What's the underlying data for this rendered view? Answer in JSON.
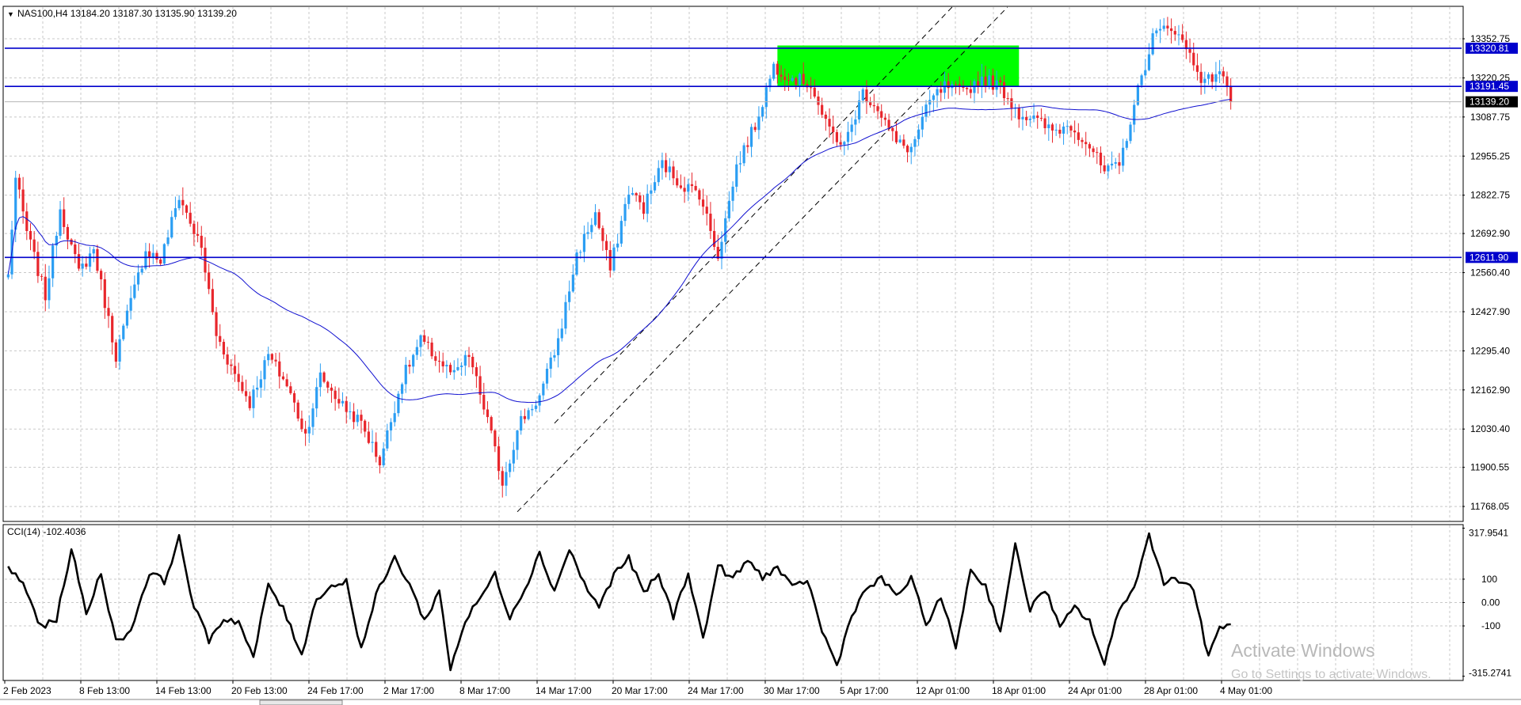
{
  "colors": {
    "bull": "#2b9ef3",
    "bear": "#e8262c",
    "level_line": "#0000cc",
    "ma_line": "#1010d0",
    "zone": "#00ff00",
    "cci_line": "#000000",
    "grid": "#c8c8c8",
    "background": "#ffffff"
  },
  "chart_data": [
    {
      "type": "candlestick",
      "title": "NAS100,H4",
      "ohlc_header": "13184.20 13187.30 13135.90 13139.20",
      "symbol_toggle_icon": "triangle-down-icon",
      "ylim": [
        11720,
        13460
      ],
      "y_ticks": [
        "13352.75",
        "13220.25",
        "13087.75",
        "12955.25",
        "12822.75",
        "12692.90",
        "12560.40",
        "12427.90",
        "12295.40",
        "12162.90",
        "12030.40",
        "11900.55",
        "11768.05"
      ],
      "x_ticks": [
        "2 Feb 2023",
        "8 Feb 13:00",
        "14 Feb 13:00",
        "20 Feb 13:00",
        "24 Feb 17:00",
        "2 Mar 17:00",
        "8 Mar 17:00",
        "14 Mar 17:00",
        "20 Mar 17:00",
        "24 Mar 17:00",
        "30 Mar 17:00",
        "5 Apr 17:00",
        "12 Apr 01:00",
        "18 Apr 01:00",
        "24 Apr 01:00",
        "28 Apr 01:00",
        "4 May 01:00"
      ],
      "bar_count": 330,
      "close_anchors": [
        [
          0,
          12550
        ],
        [
          2,
          12880
        ],
        [
          5,
          12700
        ],
        [
          10,
          12480
        ],
        [
          14,
          12780
        ],
        [
          19,
          12560
        ],
        [
          23,
          12640
        ],
        [
          29,
          12280
        ],
        [
          37,
          12640
        ],
        [
          41,
          12600
        ],
        [
          46,
          12820
        ],
        [
          52,
          12640
        ],
        [
          56,
          12350
        ],
        [
          60,
          12240
        ],
        [
          65,
          12120
        ],
        [
          70,
          12280
        ],
        [
          75,
          12180
        ],
        [
          80,
          12010
        ],
        [
          84,
          12210
        ],
        [
          90,
          12110
        ],
        [
          95,
          12050
        ],
        [
          100,
          11920
        ],
        [
          106,
          12200
        ],
        [
          111,
          12330
        ],
        [
          116,
          12260
        ],
        [
          120,
          12210
        ],
        [
          124,
          12280
        ],
        [
          129,
          12060
        ],
        [
          133,
          11850
        ],
        [
          138,
          12060
        ],
        [
          143,
          12140
        ],
        [
          148,
          12330
        ],
        [
          153,
          12620
        ],
        [
          158,
          12760
        ],
        [
          162,
          12570
        ],
        [
          167,
          12840
        ],
        [
          171,
          12780
        ],
        [
          176,
          12930
        ],
        [
          181,
          12860
        ],
        [
          186,
          12830
        ],
        [
          191,
          12620
        ],
        [
          196,
          12920
        ],
        [
          201,
          13060
        ],
        [
          206,
          13260
        ],
        [
          211,
          13220
        ],
        [
          216,
          13200
        ],
        [
          220,
          13060
        ],
        [
          225,
          12990
        ],
        [
          230,
          13170
        ],
        [
          234,
          13120
        ],
        [
          239,
          13000
        ],
        [
          243,
          12980
        ],
        [
          248,
          13140
        ],
        [
          252,
          13190
        ],
        [
          257,
          13170
        ],
        [
          262,
          13220
        ],
        [
          267,
          13190
        ],
        [
          272,
          13100
        ],
        [
          276,
          13080
        ],
        [
          281,
          13040
        ],
        [
          286,
          13060
        ],
        [
          291,
          12990
        ],
        [
          295,
          12900
        ],
        [
          299,
          12920
        ],
        [
          303,
          13130
        ],
        [
          308,
          13360
        ],
        [
          313,
          13400
        ],
        [
          318,
          13300
        ],
        [
          322,
          13200
        ],
        [
          326,
          13250
        ],
        [
          329,
          13139.2
        ]
      ],
      "ma_period_bars": 50,
      "levels": [
        {
          "price": 13320.81,
          "label": "13320.81"
        },
        {
          "price": 13191.45,
          "label": "13191.45"
        },
        {
          "price": 12611.9,
          "label": "12611.90"
        }
      ],
      "current_price": {
        "price": 13139.2,
        "label": "13139.20"
      },
      "zone": {
        "bar_from": 207,
        "bar_to": 272,
        "price_from": 13191.45,
        "price_to": 13330
      },
      "trendlines": [
        {
          "bar1": 137,
          "price1": 11750,
          "bar2": 272,
          "price2": 13500
        },
        {
          "bar1": 147,
          "price1": 12050,
          "bar2": 254,
          "price2": 13460
        }
      ]
    },
    {
      "type": "line",
      "title": "CCI(14) -102.4036",
      "ylim": [
        -330,
        330
      ],
      "y_ticks": [
        {
          "label": "317.9541",
          "value": 317.9541
        },
        {
          "label": "100",
          "value": 100
        },
        {
          "label": "0.00",
          "value": 0
        },
        {
          "label": "-100",
          "value": -100
        },
        {
          "label": "-315.2741",
          "value": -315.2741
        }
      ],
      "cci_anchors": [
        [
          0,
          150
        ],
        [
          4,
          80
        ],
        [
          9,
          -110
        ],
        [
          13,
          -70
        ],
        [
          17,
          230
        ],
        [
          21,
          -50
        ],
        [
          25,
          130
        ],
        [
          29,
          -170
        ],
        [
          33,
          -120
        ],
        [
          38,
          130
        ],
        [
          42,
          90
        ],
        [
          46,
          275
        ],
        [
          50,
          -20
        ],
        [
          54,
          -160
        ],
        [
          58,
          -70
        ],
        [
          62,
          -80
        ],
        [
          66,
          -240
        ],
        [
          70,
          80
        ],
        [
          74,
          -30
        ],
        [
          79,
          -220
        ],
        [
          83,
          20
        ],
        [
          87,
          70
        ],
        [
          91,
          90
        ],
        [
          95,
          -200
        ],
        [
          99,
          30
        ],
        [
          104,
          190
        ],
        [
          108,
          80
        ],
        [
          112,
          -80
        ],
        [
          116,
          50
        ],
        [
          119,
          -280
        ],
        [
          123,
          -80
        ],
        [
          127,
          20
        ],
        [
          131,
          120
        ],
        [
          135,
          -60
        ],
        [
          139,
          60
        ],
        [
          143,
          210
        ],
        [
          147,
          50
        ],
        [
          151,
          230
        ],
        [
          155,
          80
        ],
        [
          159,
          -20
        ],
        [
          163,
          120
        ],
        [
          167,
          190
        ],
        [
          171,
          40
        ],
        [
          175,
          120
        ],
        [
          179,
          -60
        ],
        [
          183,
          130
        ],
        [
          187,
          -160
        ],
        [
          191,
          160
        ],
        [
          195,
          100
        ],
        [
          199,
          180
        ],
        [
          203,
          110
        ],
        [
          207,
          150
        ],
        [
          211,
          60
        ],
        [
          215,
          100
        ],
        [
          219,
          -120
        ],
        [
          223,
          -270
        ],
        [
          227,
          -50
        ],
        [
          231,
          60
        ],
        [
          235,
          100
        ],
        [
          239,
          30
        ],
        [
          243,
          100
        ],
        [
          247,
          -90
        ],
        [
          251,
          20
        ],
        [
          255,
          -190
        ],
        [
          259,
          140
        ],
        [
          263,
          70
        ],
        [
          267,
          -120
        ],
        [
          271,
          240
        ],
        [
          275,
          -30
        ],
        [
          279,
          60
        ],
        [
          283,
          -110
        ],
        [
          287,
          -20
        ],
        [
          291,
          -80
        ],
        [
          295,
          -270
        ],
        [
          299,
          -20
        ],
        [
          303,
          60
        ],
        [
          307,
          290
        ],
        [
          311,
          90
        ],
        [
          315,
          100
        ],
        [
          319,
          60
        ],
        [
          323,
          -240
        ],
        [
          326,
          -100
        ],
        [
          329,
          -100
        ]
      ]
    }
  ],
  "watermark": {
    "line1": "Activate Windows",
    "line2": "Go to Settings to activate Windows."
  }
}
